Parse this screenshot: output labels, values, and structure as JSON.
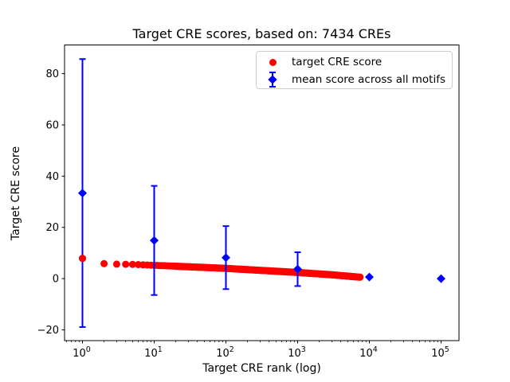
{
  "chart_data": {
    "type": "scatter",
    "title": "Target CRE scores, based on: 7434 CREs",
    "xlabel": "Target CRE rank (log)",
    "ylabel": "Target CRE score",
    "x_scale": "log10",
    "xlim_log10": [
      -0.25,
      5.25
    ],
    "ylim": [
      -24.2,
      91.2
    ],
    "x_tick_exponents": [
      0,
      1,
      2,
      3,
      4,
      5
    ],
    "x_tick_base": "10",
    "y_ticks": [
      -20,
      0,
      20,
      40,
      60,
      80
    ],
    "grid": false,
    "legend": {
      "position": "upper right",
      "entries": [
        "target CRE score",
        "mean score across all motifs"
      ]
    },
    "series": [
      {
        "name": "target CRE score",
        "marker": "circle",
        "color": "#ff0000",
        "n_points": 7434,
        "rank_range": [
          1,
          7434
        ],
        "curve_log10rank_value_anchors": [
          [
            0,
            7.9
          ],
          [
            0.301,
            5.85
          ],
          [
            0.477,
            5.65
          ],
          [
            0.699,
            5.55
          ],
          [
            1.0,
            5.2
          ],
          [
            1.5,
            4.6
          ],
          [
            2.0,
            4.0
          ],
          [
            2.5,
            3.2
          ],
          [
            3.0,
            2.4
          ],
          [
            3.5,
            1.45
          ],
          [
            3.871,
            0.55
          ]
        ]
      },
      {
        "name": "mean score across all motifs",
        "marker": "diamond",
        "color": "#0000ff",
        "x": [
          1,
          10,
          100,
          1000,
          10000,
          100000
        ],
        "mean": [
          33.4,
          14.9,
          8.2,
          3.7,
          0.6,
          0.0
        ],
        "err": [
          52.3,
          21.3,
          12.3,
          6.6,
          0.0,
          0.0
        ]
      }
    ],
    "colors": {
      "red": "#ff0000",
      "blue": "#0000ff",
      "axis": "#000000",
      "legend_border": "#cccccc",
      "background": "#ffffff"
    }
  }
}
